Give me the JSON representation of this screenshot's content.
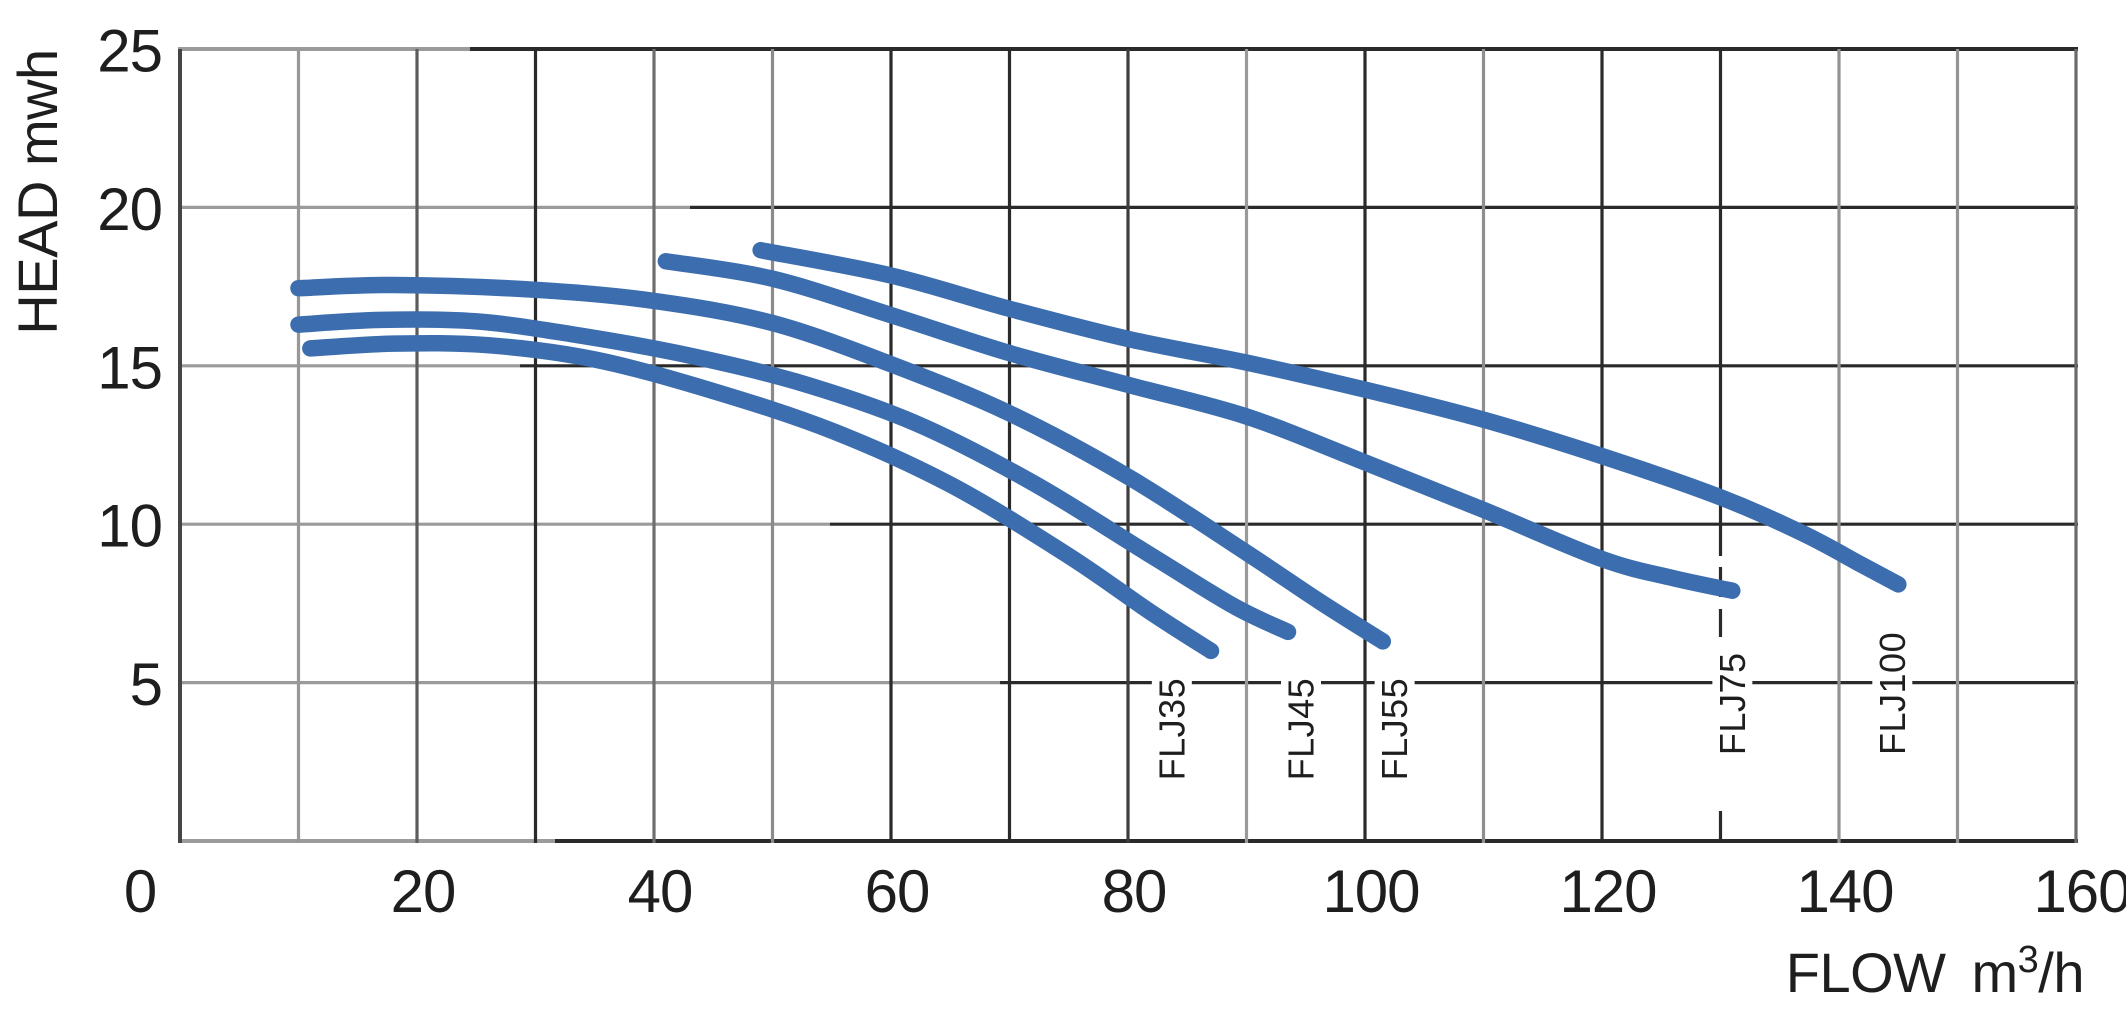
{
  "chart_data": {
    "type": "line",
    "title": "",
    "xlabel": "FLOW m3/h",
    "xlabel_parts": {
      "word": "FLOW",
      "unit_base": "m",
      "unit_sup": "3",
      "unit_suffix": "/h"
    },
    "ylabel": "HEAD mwh",
    "xlim": [
      0,
      160
    ],
    "ylim": [
      0,
      25
    ],
    "x_tick_labels": [
      0,
      20,
      40,
      60,
      80,
      100,
      120,
      140,
      160
    ],
    "y_tick_labels": [
      5,
      10,
      15,
      20,
      25
    ],
    "x_grid_step": 10,
    "y_grid_step": 5,
    "grid": true,
    "curve_color": "#3C6EAF",
    "axis_text_color": "#1e1e1e",
    "legend_position": "rotated labels below each curve end",
    "series": [
      {
        "name": "FLJ35",
        "label_flow": 83.7,
        "label_head": 5.15,
        "points": [
          [
            11,
            15.55
          ],
          [
            18,
            15.7
          ],
          [
            26,
            15.65
          ],
          [
            35,
            15.2
          ],
          [
            45,
            14.2
          ],
          [
            55,
            12.95
          ],
          [
            65,
            11.25
          ],
          [
            75,
            9.0
          ],
          [
            82,
            7.2
          ],
          [
            87,
            6.0
          ]
        ]
      },
      {
        "name": "FLJ45",
        "label_flow": 94.6,
        "label_head": 5.15,
        "points": [
          [
            10,
            16.3
          ],
          [
            17,
            16.45
          ],
          [
            25,
            16.4
          ],
          [
            33,
            16.0
          ],
          [
            42,
            15.4
          ],
          [
            52,
            14.5
          ],
          [
            62,
            13.2
          ],
          [
            72,
            11.3
          ],
          [
            82,
            9.0
          ],
          [
            89,
            7.4
          ],
          [
            93.5,
            6.6
          ]
        ]
      },
      {
        "name": "FLJ55",
        "label_flow": 102.5,
        "label_head": 5.15,
        "points": [
          [
            10,
            17.45
          ],
          [
            18,
            17.55
          ],
          [
            30,
            17.4
          ],
          [
            40,
            17.05
          ],
          [
            50,
            16.35
          ],
          [
            60,
            15.05
          ],
          [
            70,
            13.5
          ],
          [
            80,
            11.5
          ],
          [
            90,
            9.1
          ],
          [
            96,
            7.6
          ],
          [
            101.5,
            6.3
          ]
        ]
      },
      {
        "name": "FLJ75",
        "label_flow": 131,
        "label_head": 5.95,
        "leader_line_flow": 130,
        "points": [
          [
            41,
            18.3
          ],
          [
            50,
            17.75
          ],
          [
            60,
            16.6
          ],
          [
            70,
            15.4
          ],
          [
            80,
            14.4
          ],
          [
            90,
            13.4
          ],
          [
            100,
            11.95
          ],
          [
            110,
            10.45
          ],
          [
            120,
            8.9
          ],
          [
            126,
            8.3
          ],
          [
            131,
            7.9
          ]
        ]
      },
      {
        "name": "FLJ100",
        "label_flow": 144.5,
        "label_head": 6.6,
        "points": [
          [
            49,
            18.65
          ],
          [
            60,
            17.85
          ],
          [
            70,
            16.8
          ],
          [
            80,
            15.85
          ],
          [
            90,
            15.1
          ],
          [
            100,
            14.25
          ],
          [
            110,
            13.3
          ],
          [
            120,
            12.15
          ],
          [
            130,
            10.85
          ],
          [
            137,
            9.7
          ],
          [
            142,
            8.7
          ],
          [
            145,
            8.1
          ]
        ]
      }
    ]
  }
}
